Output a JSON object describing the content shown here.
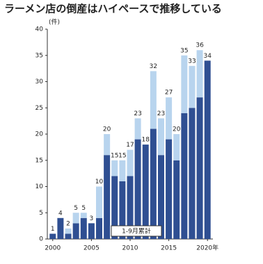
{
  "chart_data": {
    "type": "bar",
    "stacked": true,
    "title": "ラーメン店の倒産はハイペースで推移している",
    "y_unit": "(件)",
    "annotation": "1-9月累計",
    "x": [
      2000,
      2001,
      2002,
      2003,
      2004,
      2005,
      2006,
      2007,
      2008,
      2009,
      2010,
      2011,
      2012,
      2013,
      2014,
      2015,
      2016,
      2017,
      2018,
      2019,
      2020
    ],
    "series": [
      {
        "name": "1-9月累計",
        "color": "#2f4f92",
        "values": [
          1,
          4,
          1,
          3,
          4,
          3,
          4,
          16,
          12,
          11,
          12,
          19,
          18,
          21,
          16,
          19,
          15,
          24,
          25,
          27,
          34
        ]
      },
      {
        "color": "#b8d4ee",
        "values": [
          0,
          0,
          1,
          2,
          1,
          0,
          6,
          4,
          3,
          4,
          5,
          4,
          0,
          11,
          7,
          8,
          5,
          11,
          8,
          9,
          null
        ]
      }
    ],
    "totals": [
      1,
      4,
      2,
      5,
      5,
      3,
      10,
      20,
      15,
      15,
      17,
      23,
      18,
      32,
      23,
      27,
      20,
      35,
      33,
      36,
      34
    ],
    "xlim": [
      1999.3,
      2020.7
    ],
    "xticks": [
      2000,
      2005,
      2010,
      2015,
      {
        "value": 2020,
        "label": "2020年"
      }
    ],
    "ylim": [
      0,
      40
    ],
    "yticks": [
      0,
      5,
      10,
      15,
      20,
      25,
      30,
      35,
      40
    ],
    "grid": false
  }
}
